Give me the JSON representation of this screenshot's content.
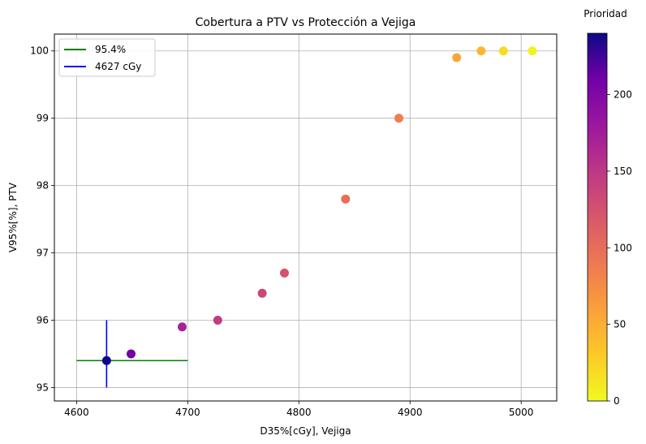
{
  "chart_data": {
    "type": "scatter",
    "title": "Cobertura a PTV vs Protección a Vejiga",
    "xlabel": "D35%[cGy], Vejiga",
    "ylabel": "V95%[%], PTV",
    "xlim": [
      4580,
      5032
    ],
    "ylim": [
      94.8,
      100.25
    ],
    "xticks": [
      4600,
      4700,
      4800,
      4900,
      5000
    ],
    "yticks": [
      95,
      96,
      97,
      98,
      99,
      100
    ],
    "grid": true,
    "legend_position": "upper-left",
    "colorbar": {
      "label": "Prioridad",
      "colormap": "plasma_r",
      "range": [
        0,
        240
      ],
      "ticks": [
        0,
        50,
        100,
        150,
        200
      ]
    },
    "points": [
      {
        "x": 4627,
        "y": 95.4,
        "priority": 240
      },
      {
        "x": 4649,
        "y": 95.5,
        "priority": 210
      },
      {
        "x": 4695,
        "y": 95.9,
        "priority": 170
      },
      {
        "x": 4727,
        "y": 96.0,
        "priority": 145
      },
      {
        "x": 4767,
        "y": 96.4,
        "priority": 135
      },
      {
        "x": 4787,
        "y": 96.7,
        "priority": 125
      },
      {
        "x": 4842,
        "y": 97.8,
        "priority": 100
      },
      {
        "x": 4890,
        "y": 99.0,
        "priority": 85
      },
      {
        "x": 4942,
        "y": 99.9,
        "priority": 55
      },
      {
        "x": 4964,
        "y": 100.0,
        "priority": 45
      },
      {
        "x": 4984,
        "y": 100.0,
        "priority": 20
      },
      {
        "x": 5010,
        "y": 100.0,
        "priority": 5
      }
    ],
    "reference_lines": [
      {
        "name": "95.4%",
        "color": "#008000",
        "orientation": "horizontal",
        "y": 95.4,
        "x_from": 4600,
        "x_to": 4700
      },
      {
        "name": "4627 cGy",
        "color": "#0000ff",
        "orientation": "vertical",
        "x": 4627,
        "y_from": 95.0,
        "y_to": 96.0
      }
    ]
  }
}
